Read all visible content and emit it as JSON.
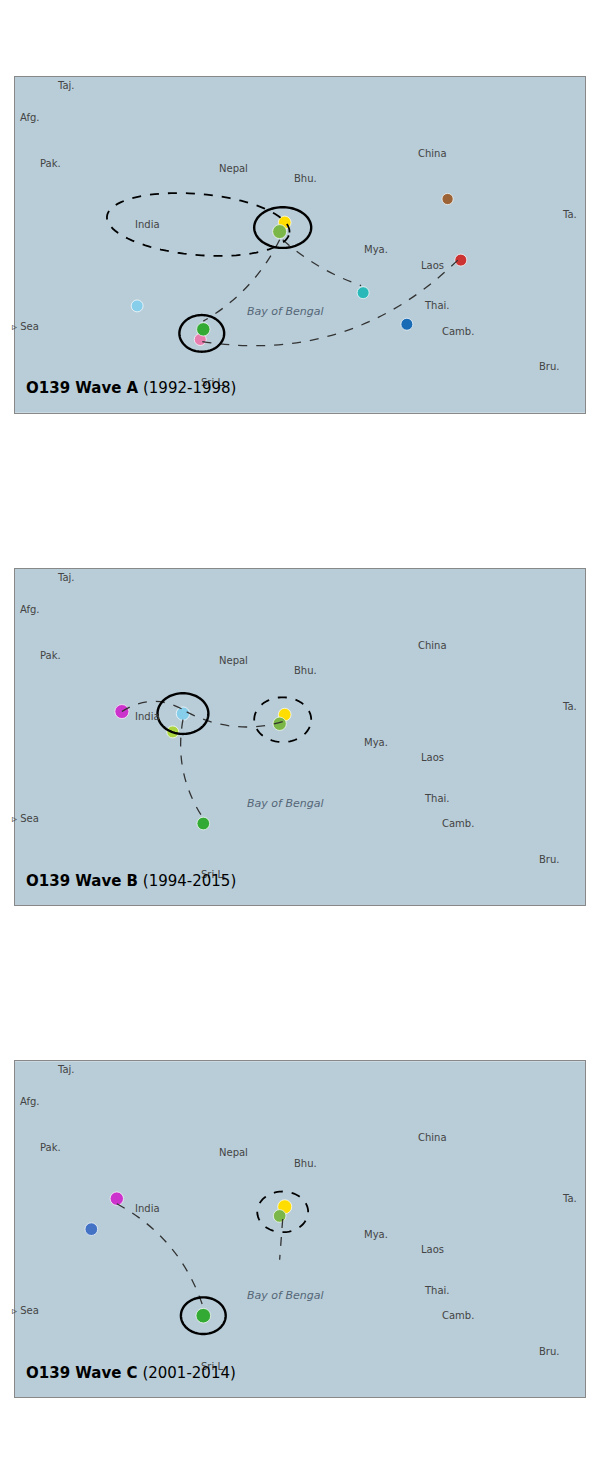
{
  "chart_data": [
    {
      "type": "scatter",
      "title": "O139 Wave A",
      "subtitle": " (1992-1998)",
      "x": [
        105.8,
        100.5,
        96.2,
        88.5,
        88.0,
        80.2,
        80.5,
        74.0,
        104.5
      ],
      "values": [
        20.0,
        13.7,
        16.8,
        23.7,
        22.8,
        12.2,
        13.2,
        15.5,
        26.0
      ],
      "colors": [
        "#cc3333",
        "#1a6bb5",
        "#2ab8b8",
        "#ffdd00",
        "#7ab648",
        "#e87db0",
        "#33aa33",
        "#87ceeb",
        "#9b6336"
      ],
      "sizes": [
        80,
        80,
        80,
        90,
        110,
        80,
        100,
        80,
        70
      ],
      "solid_circles": [
        {
          "lon": 88.3,
          "lat": 23.2,
          "rx": 2.8,
          "ry": 2.0
        },
        {
          "lon": 80.35,
          "lat": 12.8,
          "rx": 2.2,
          "ry": 1.8
        }
      ],
      "dashed_circles": [
        {
          "lon": 80.0,
          "lat": 23.5,
          "rx": 9.0,
          "ry": 3.0,
          "angle": -5
        }
      ],
      "curves": [
        {
          "x1": 88.3,
          "y1": 22.0,
          "x2": 96.0,
          "y2": 17.5,
          "rad": 0.1
        },
        {
          "x1": 88.0,
          "y1": 22.0,
          "x2": 80.5,
          "y2": 14.0,
          "rad": -0.15
        },
        {
          "x1": 80.4,
          "y1": 12.0,
          "x2": 105.5,
          "y2": 20.0,
          "rad": 0.25
        }
      ],
      "annotations": [
        {
          "text": "Taj.",
          "x": 67.0,
          "y": 37.2
        },
        {
          "text": "Afg.",
          "x": 63.5,
          "y": 34.0
        },
        {
          "text": "Pak.",
          "x": 65.5,
          "y": 29.5
        },
        {
          "text": "India",
          "x": 75.0,
          "y": 23.5
        },
        {
          "text": "Nepal",
          "x": 83.5,
          "y": 29.0
        },
        {
          "text": "Bhu.",
          "x": 90.5,
          "y": 28.0
        },
        {
          "text": "China",
          "x": 103.0,
          "y": 30.5
        },
        {
          "text": "Mya.",
          "x": 97.5,
          "y": 21.0
        },
        {
          "text": "Laos",
          "x": 103.0,
          "y": 19.5
        },
        {
          "text": "Thai.",
          "x": 103.5,
          "y": 15.5
        },
        {
          "text": "Camb.",
          "x": 105.5,
          "y": 13.0
        },
        {
          "text": "Bay of Bengal",
          "x": 88.5,
          "y": 15.0,
          "italic": true
        },
        {
          "text": "Sri L.",
          "x": 81.5,
          "y": 8.0
        },
        {
          "text": "Bru.",
          "x": 114.5,
          "y": 9.5
        },
        {
          "text": "Ta.",
          "x": 116.5,
          "y": 24.5
        },
        {
          "text": "▹ Sea",
          "x": 63.0,
          "y": 13.5
        }
      ],
      "xlim": [
        62,
        118
      ],
      "ylim": [
        5,
        38
      ],
      "tick_labels": false,
      "grid": false,
      "ocean_color": "#b8cdd8"
    },
    {
      "type": "scatter",
      "title": "O139 Wave B",
      "subtitle": " (1994-2015)",
      "x": [
        72.5,
        77.5,
        78.5,
        88.5,
        88.0,
        80.5
      ],
      "values": [
        24.0,
        22.0,
        23.8,
        23.7,
        22.8,
        13.0
      ],
      "colors": [
        "#cc33cc",
        "#aad440",
        "#87ceeb",
        "#ffdd00",
        "#7ab648",
        "#33aa33"
      ],
      "sizes": [
        110,
        80,
        100,
        90,
        100,
        90
      ],
      "solid_circles": [
        {
          "lon": 78.5,
          "lat": 23.8,
          "rx": 2.5,
          "ry": 2.0
        }
      ],
      "dashed_circles": [
        {
          "lon": 88.3,
          "lat": 23.2,
          "rx": 2.8,
          "ry": 2.2
        }
      ],
      "curves": [
        {
          "x1": 72.5,
          "y1": 24.0,
          "x2": 78.5,
          "y2": 24.2,
          "rad": -0.3
        },
        {
          "x1": 88.3,
          "y1": 23.0,
          "x2": 78.8,
          "y2": 24.0,
          "rad": -0.2
        },
        {
          "x1": 78.5,
          "y1": 23.2,
          "x2": 80.5,
          "y2": 13.5,
          "rad": 0.2
        }
      ],
      "annotations": [
        {
          "text": "Taj.",
          "x": 67.0,
          "y": 37.2
        },
        {
          "text": "Afg.",
          "x": 63.5,
          "y": 34.0
        },
        {
          "text": "Pak.",
          "x": 65.5,
          "y": 29.5
        },
        {
          "text": "India",
          "x": 75.0,
          "y": 23.5
        },
        {
          "text": "Nepal",
          "x": 83.5,
          "y": 29.0
        },
        {
          "text": "Bhu.",
          "x": 90.5,
          "y": 28.0
        },
        {
          "text": "China",
          "x": 103.0,
          "y": 30.5
        },
        {
          "text": "Mya.",
          "x": 97.5,
          "y": 21.0
        },
        {
          "text": "Laos",
          "x": 103.0,
          "y": 19.5
        },
        {
          "text": "Thai.",
          "x": 103.5,
          "y": 15.5
        },
        {
          "text": "Camb.",
          "x": 105.5,
          "y": 13.0
        },
        {
          "text": "Bay of Bengal",
          "x": 88.5,
          "y": 15.0,
          "italic": true
        },
        {
          "text": "Sri L.",
          "x": 81.5,
          "y": 8.0
        },
        {
          "text": "Bru.",
          "x": 114.5,
          "y": 9.5
        },
        {
          "text": "Ta.",
          "x": 116.5,
          "y": 24.5
        },
        {
          "text": "▹ Sea",
          "x": 63.0,
          "y": 13.5
        }
      ],
      "xlim": [
        62,
        118
      ],
      "ylim": [
        5,
        38
      ],
      "tick_labels": false,
      "grid": false,
      "ocean_color": "#b8cdd8"
    },
    {
      "type": "scatter",
      "title": "O139 Wave C",
      "subtitle": " (2001-2014)",
      "x": [
        72.0,
        69.5,
        88.5,
        88.0,
        80.5
      ],
      "values": [
        24.5,
        21.5,
        23.7,
        22.8,
        13.0
      ],
      "colors": [
        "#cc33cc",
        "#4472c4",
        "#ffdd00",
        "#7ab648",
        "#33aa33"
      ],
      "sizes": [
        100,
        90,
        110,
        90,
        120
      ],
      "solid_circles": [
        {
          "lon": 80.5,
          "lat": 13.0,
          "rx": 2.2,
          "ry": 1.8
        }
      ],
      "dashed_circles": [
        {
          "lon": 88.3,
          "lat": 23.2,
          "rx": 2.5,
          "ry": 2.0
        }
      ],
      "curves": [
        {
          "x1": 72.0,
          "y1": 24.0,
          "x2": 80.5,
          "y2": 13.8,
          "rad": -0.2
        },
        {
          "x1": 88.3,
          "y1": 22.5,
          "x2": 88.0,
          "y2": 18.5,
          "rad": 0.0
        }
      ],
      "annotations": [
        {
          "text": "Taj.",
          "x": 67.0,
          "y": 37.2
        },
        {
          "text": "Afg.",
          "x": 63.5,
          "y": 34.0
        },
        {
          "text": "Pak.",
          "x": 65.5,
          "y": 29.5
        },
        {
          "text": "India",
          "x": 75.0,
          "y": 23.5
        },
        {
          "text": "Nepal",
          "x": 83.5,
          "y": 29.0
        },
        {
          "text": "Bhu.",
          "x": 90.5,
          "y": 28.0
        },
        {
          "text": "China",
          "x": 103.0,
          "y": 30.5
        },
        {
          "text": "Mya.",
          "x": 97.5,
          "y": 21.0
        },
        {
          "text": "Laos",
          "x": 103.0,
          "y": 19.5
        },
        {
          "text": "Thai.",
          "x": 103.5,
          "y": 15.5
        },
        {
          "text": "Camb.",
          "x": 105.5,
          "y": 13.0
        },
        {
          "text": "Bay of Bengal",
          "x": 88.5,
          "y": 15.0,
          "italic": true
        },
        {
          "text": "Sri L.",
          "x": 81.5,
          "y": 8.0
        },
        {
          "text": "Bru.",
          "x": 114.5,
          "y": 9.5
        },
        {
          "text": "Ta.",
          "x": 116.5,
          "y": 24.5
        },
        {
          "text": "▹ Sea",
          "x": 63.0,
          "y": 13.5
        }
      ],
      "xlim": [
        62,
        118
      ],
      "ylim": [
        5,
        38
      ],
      "tick_labels": false,
      "grid": false,
      "ocean_color": "#b8cdd8"
    }
  ]
}
